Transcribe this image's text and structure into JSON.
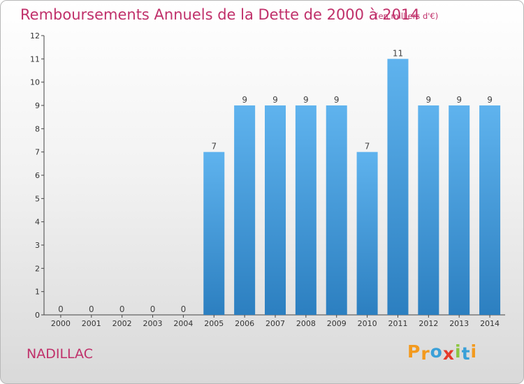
{
  "title": "Remboursements Annuels de la Dette de 2000 à 2014",
  "subtitle": "(en milliers d'€)",
  "commune": "NADILLAC",
  "logo": {
    "text": "Proxiti",
    "letters": [
      "P",
      "r",
      "o",
      "x",
      "i",
      "t",
      "i"
    ],
    "colors": [
      "#f39a1e",
      "#f39a1e",
      "#3aa0d8",
      "#e63a2a",
      "#8cc63f",
      "#3aa0d8",
      "#f39a1e"
    ]
  },
  "colors": {
    "title": "#c0306a",
    "bar_light": "#5fb3ee",
    "bar_dark": "#2c7fc0"
  },
  "chart_data": {
    "type": "bar",
    "categories": [
      "2000",
      "2001",
      "2002",
      "2003",
      "2004",
      "2005",
      "2006",
      "2007",
      "2008",
      "2009",
      "2010",
      "2011",
      "2012",
      "2013",
      "2014"
    ],
    "values": [
      0,
      0,
      0,
      0,
      0,
      7,
      9,
      9,
      9,
      9,
      7,
      11,
      9,
      9,
      9
    ],
    "ylim": [
      0,
      12
    ],
    "yticks": [
      0,
      1,
      2,
      3,
      4,
      5,
      6,
      7,
      8,
      9,
      10,
      11,
      12
    ],
    "ytick_labels": [
      "0",
      "1",
      "2",
      "3",
      "4",
      "5",
      "6",
      "7",
      "8",
      "9",
      "10",
      "11",
      "12"
    ],
    "xlabel": "",
    "ylabel": "",
    "grid": false,
    "data_labels": true
  }
}
